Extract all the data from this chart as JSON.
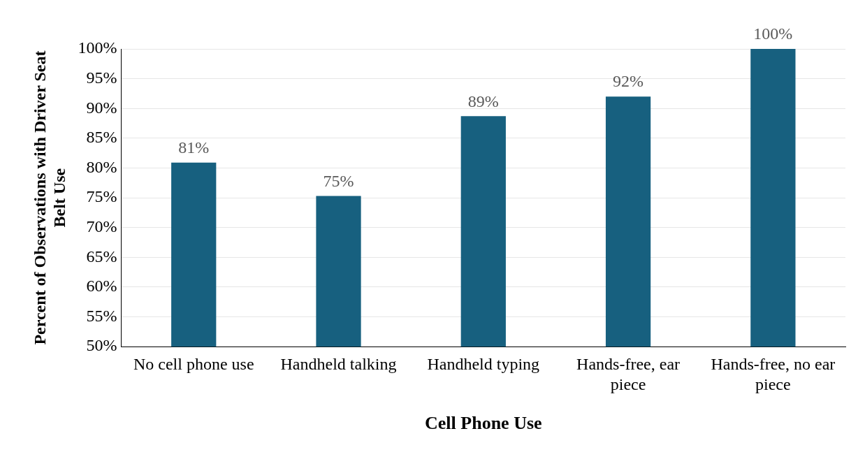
{
  "chart_data": {
    "type": "bar",
    "xlabel": "Cell Phone Use",
    "ylabel": "Percent of Observations with Driver Seat Belt Use",
    "categories": [
      "No cell phone use",
      "Handheld talking",
      "Handheld typing",
      "Hands-free, ear piece",
      "Hands-free, no ear piece"
    ],
    "values": [
      80.9,
      75.3,
      88.7,
      92.0,
      100
    ],
    "value_labels": [
      "81%",
      "75%",
      "89%",
      "92%",
      "100%"
    ],
    "color": "#17607f",
    "ylim": [
      50,
      100
    ],
    "yticks": [
      {
        "value": 50,
        "label": "50%"
      },
      {
        "value": 55,
        "label": "55%"
      },
      {
        "value": 60,
        "label": "60%"
      },
      {
        "value": 65,
        "label": "65%"
      },
      {
        "value": 70,
        "label": "70%"
      },
      {
        "value": 75,
        "label": "75%"
      },
      {
        "value": 80,
        "label": "80%"
      },
      {
        "value": 85,
        "label": "85%"
      },
      {
        "value": 90,
        "label": "90%"
      },
      {
        "value": 95,
        "label": "95%"
      },
      {
        "value": 100,
        "label": "100%"
      }
    ],
    "grid": "y",
    "legend": false
  }
}
